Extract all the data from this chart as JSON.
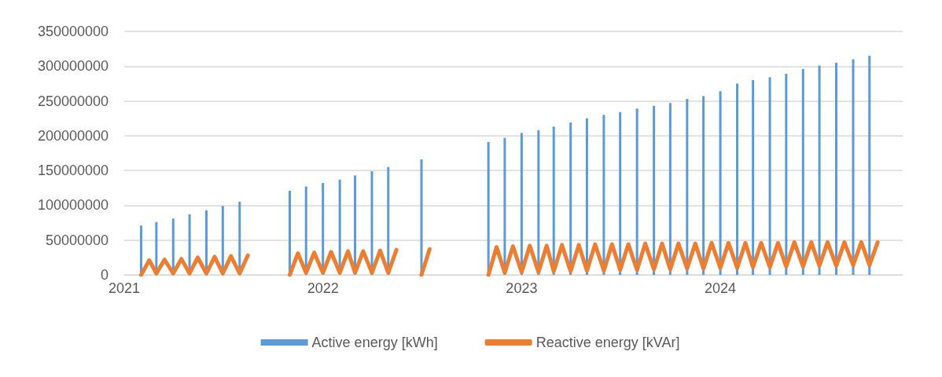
{
  "chart_data": {
    "type": "bar",
    "xlim": [
      "2021-01",
      "2024-12"
    ],
    "xticks": [
      "2021",
      "2022",
      "2023",
      "2024"
    ],
    "ylim": [
      0,
      350000000
    ],
    "yticks": [
      0,
      50000000,
      100000000,
      150000000,
      200000000,
      250000000,
      300000000,
      350000000
    ],
    "grid": "y",
    "legend": "bottom",
    "series": [
      {
        "name": "Active energy [kWh]",
        "color": "#5b9bd5",
        "x": [
          "2021-02",
          "2021-03",
          "2021-04",
          "2021-05",
          "2021-06",
          "2021-07",
          "2021-08",
          "2021-11",
          "2021-12",
          "2022-01",
          "2022-02",
          "2022-03",
          "2022-04",
          "2022-05",
          "2022-07",
          "2022-11",
          "2022-12",
          "2023-01",
          "2023-02",
          "2023-03",
          "2023-04",
          "2023-05",
          "2023-06",
          "2023-07",
          "2023-08",
          "2023-09",
          "2023-10",
          "2023-11",
          "2023-12",
          "2024-01",
          "2024-02",
          "2024-03",
          "2024-04",
          "2024-05",
          "2024-06",
          "2024-07",
          "2024-08",
          "2024-09",
          "2024-10"
        ],
        "values": [
          71000000,
          76000000,
          81000000,
          87000000,
          93000000,
          99000000,
          105000000,
          121000000,
          127000000,
          132000000,
          137000000,
          143000000,
          149000000,
          155000000,
          166000000,
          191000000,
          197000000,
          204000000,
          208000000,
          213000000,
          219000000,
          225000000,
          230000000,
          234000000,
          239000000,
          243000000,
          247000000,
          253000000,
          257000000,
          264000000,
          275000000,
          280000000,
          284000000,
          289000000,
          296000000,
          301000000,
          305000000,
          310000000,
          315000000
        ]
      },
      {
        "name": "Reactive energy [kVAr]",
        "type": "line",
        "color": "#ed7d31",
        "x": [
          "2021-02-01",
          "2021-02-16",
          "2021-03-01",
          "2021-03-16",
          "2021-04-01",
          "2021-04-16",
          "2021-05-01",
          "2021-05-16",
          "2021-06-01",
          "2021-06-16",
          "2021-07-01",
          "2021-07-16",
          "2021-08-01",
          "2021-08-16",
          "2021-09-15",
          "2021-11-01",
          "2021-11-16",
          "2021-12-01",
          "2021-12-16",
          "2022-01-01",
          "2022-01-16",
          "2022-02-01",
          "2022-02-16",
          "2022-03-01",
          "2022-03-16",
          "2022-04-01",
          "2022-04-16",
          "2022-05-01",
          "2022-05-16",
          "2022-06-15",
          "2022-07-01",
          "2022-07-16",
          "2022-09-15",
          "2022-11-01",
          "2022-11-16",
          "2022-12-01",
          "2022-12-16",
          "2023-01-01",
          "2023-01-16",
          "2023-02-01",
          "2023-02-16",
          "2023-03-01",
          "2023-03-16",
          "2023-04-01",
          "2023-04-16",
          "2023-05-01",
          "2023-05-16",
          "2023-06-01",
          "2023-06-16",
          "2023-07-01",
          "2023-07-16",
          "2023-08-01",
          "2023-08-16",
          "2023-09-01",
          "2023-09-16",
          "2023-10-01",
          "2023-10-16",
          "2023-11-01",
          "2023-11-16",
          "2023-12-01",
          "2023-12-16",
          "2024-01-01",
          "2024-01-16",
          "2024-02-01",
          "2024-02-16",
          "2024-03-01",
          "2024-03-16",
          "2024-04-01",
          "2024-04-16",
          "2024-05-01",
          "2024-05-16",
          "2024-06-01",
          "2024-06-16",
          "2024-07-01",
          "2024-07-16",
          "2024-08-01",
          "2024-08-16",
          "2024-09-01",
          "2024-09-16",
          "2024-10-01",
          "2024-10-16"
        ],
        "values": [
          0,
          21000000,
          2000000,
          22000000,
          2000000,
          23000000,
          2000000,
          25000000,
          2000000,
          26000000,
          2000000,
          27000000,
          2000000,
          28000000,
          null,
          0,
          31000000,
          3000000,
          32000000,
          3000000,
          33000000,
          3000000,
          34000000,
          3000000,
          34000000,
          3000000,
          35000000,
          3000000,
          36000000,
          null,
          0,
          37000000,
          null,
          0,
          40000000,
          3000000,
          41000000,
          4000000,
          42000000,
          4000000,
          42000000,
          5000000,
          43000000,
          5000000,
          43000000,
          6000000,
          44000000,
          6000000,
          44000000,
          7000000,
          44000000,
          7000000,
          45000000,
          8000000,
          45000000,
          8000000,
          45000000,
          9000000,
          45000000,
          9000000,
          46000000,
          10000000,
          46000000,
          10000000,
          46000000,
          11000000,
          46000000,
          11000000,
          46000000,
          12000000,
          47000000,
          12000000,
          47000000,
          13000000,
          47000000,
          13000000,
          47000000,
          14000000,
          47000000,
          14000000,
          47000000
        ]
      }
    ]
  }
}
